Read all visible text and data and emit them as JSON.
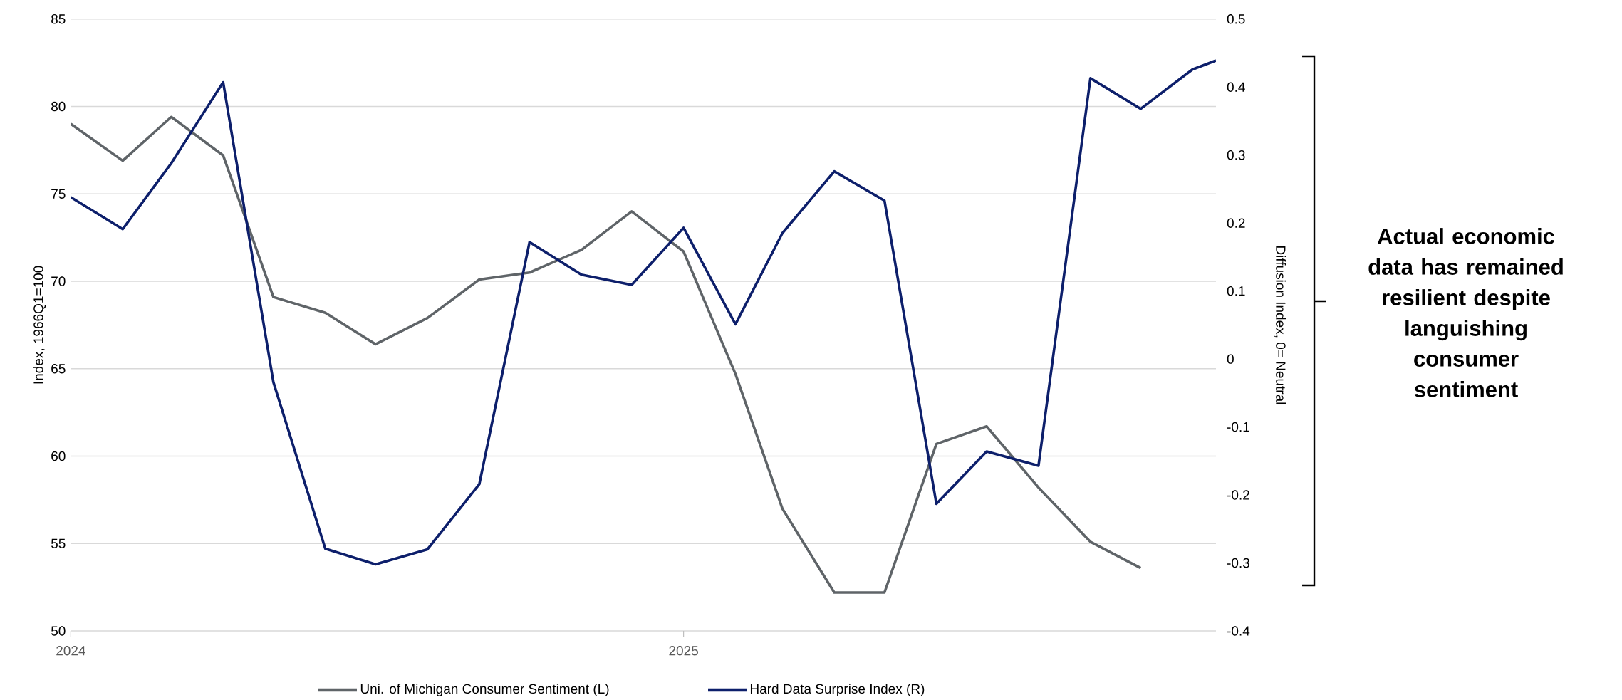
{
  "chart_data": {
    "type": "line",
    "x": [
      "2024-01",
      "2024-02",
      "2024-03",
      "2024-04",
      "2024-05",
      "2024-06",
      "2024-07",
      "2024-08",
      "2024-09",
      "2024-10",
      "2024-11",
      "2024-12",
      "2025-01",
      "2025-02",
      "2025-03",
      "2025-04",
      "2025-05",
      "2025-06",
      "2025-07",
      "2025-08",
      "2025-09",
      "2025-10",
      "2025-11",
      "2025-11-15"
    ],
    "series": [
      {
        "name": "Uni. of Michigan Consumer Sentiment (L)",
        "color": "#5f6468",
        "values": [
          79.0,
          76.9,
          79.4,
          77.2,
          69.1,
          68.2,
          66.4,
          67.9,
          70.1,
          70.5,
          71.8,
          74.0,
          71.7,
          64.7,
          57.0,
          52.2,
          52.2,
          60.7,
          61.7,
          58.2,
          55.1,
          53.6,
          null,
          null
        ]
      },
      {
        "name": "Hard Data Surprise Index (R)",
        "color": "#0d1f6b",
        "axis": "y2",
        "values": [
          0.238,
          0.191,
          0.288,
          0.407,
          -0.034,
          -0.279,
          -0.302,
          -0.28,
          -0.184,
          0.172,
          0.124,
          0.109,
          0.193,
          0.051,
          0.185,
          0.276,
          0.233,
          -0.213,
          -0.136,
          -0.157,
          0.413,
          0.368,
          0.426,
          0.439
        ]
      }
    ],
    "xlim": [
      "2024-01",
      "2025-11-15"
    ],
    "xticks": [
      "2024",
      "2025"
    ],
    "ylim": [
      50,
      85
    ],
    "yticks": [
      50,
      55,
      60,
      65,
      70,
      75,
      80,
      85
    ],
    "y2lim": [
      -0.4,
      0.5
    ],
    "y2ticks": [
      -0.4,
      -0.3,
      -0.2,
      -0.1,
      0,
      0.1,
      0.2,
      0.3,
      0.4,
      0.5
    ],
    "ylabel": "Index, 1966Q1=100",
    "y2label": "Diffusion Index, 0= Neutral",
    "grid": "y",
    "legend": "bottom",
    "line_style": "solid",
    "annotations": [
      "Actual economic data has remained resilient despite languishing consumer sentiment"
    ]
  }
}
